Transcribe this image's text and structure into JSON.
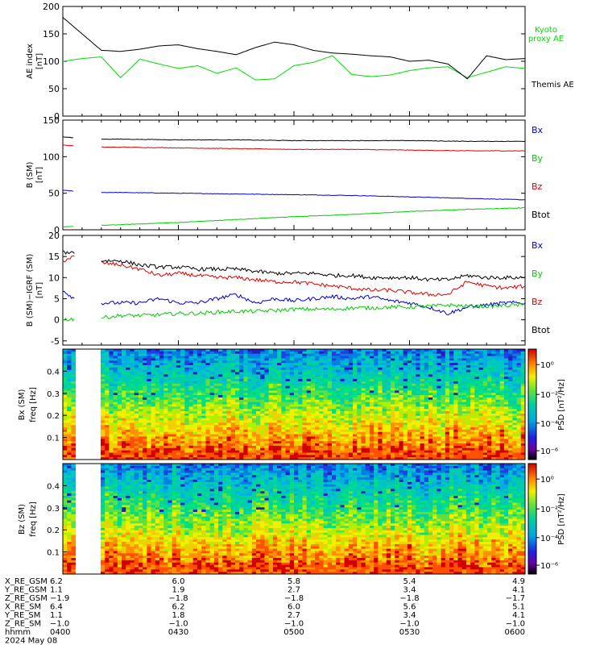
{
  "chart_data": [
    {
      "type": "line",
      "ylabel": "AE index [nT]",
      "ylim": [
        0,
        200
      ],
      "yticks": [
        0,
        50,
        100,
        150,
        200
      ],
      "xlim": [
        "04:00",
        "06:00"
      ],
      "legend_position": "right",
      "series": [
        {
          "name": "Kyoto proxy AE",
          "color": "#00dd00",
          "x": [
            "04:00",
            "04:05",
            "04:10",
            "04:15",
            "04:20",
            "04:25",
            "04:30",
            "04:35",
            "04:40",
            "04:45",
            "04:50",
            "04:55",
            "05:00",
            "05:05",
            "05:10",
            "05:15",
            "05:20",
            "05:25",
            "05:30",
            "05:35",
            "05:40",
            "05:45",
            "05:50",
            "05:55",
            "06:00"
          ],
          "values": [
            100,
            105,
            108,
            70,
            104,
            95,
            87,
            92,
            78,
            88,
            66,
            68,
            92,
            98,
            110,
            76,
            72,
            75,
            83,
            88,
            90,
            70,
            80,
            90,
            87
          ]
        },
        {
          "name": "Themis AE",
          "color": "#000000",
          "x": [
            "04:00",
            "04:05",
            "04:10",
            "04:15",
            "04:20",
            "04:25",
            "04:30",
            "04:35",
            "04:40",
            "04:45",
            "04:50",
            "04:55",
            "05:00",
            "05:05",
            "05:10",
            "05:15",
            "05:20",
            "05:25",
            "05:30",
            "05:35",
            "05:40",
            "05:45",
            "05:50",
            "05:55",
            "06:00"
          ],
          "values": [
            180,
            150,
            120,
            118,
            122,
            128,
            130,
            123,
            118,
            112,
            125,
            135,
            130,
            120,
            115,
            113,
            110,
            108,
            100,
            102,
            95,
            68,
            110,
            103,
            105
          ]
        }
      ]
    },
    {
      "type": "line",
      "ylabel": "B (SM) [nT]",
      "ylim": [
        0,
        150
      ],
      "yticks": [
        0,
        50,
        100,
        150
      ],
      "legend_position": "right",
      "series": [
        {
          "name": "Bx",
          "color": "#0000cc",
          "x": [
            "04:00",
            "04:05",
            "04:10",
            "04:15",
            "04:30",
            "04:45",
            "05:00",
            "05:15",
            "05:30",
            "05:45",
            "06:00"
          ],
          "values": [
            54,
            52,
            51,
            51,
            50,
            49,
            48,
            47,
            45,
            43,
            41
          ]
        },
        {
          "name": "By",
          "color": "#00cc00",
          "x": [
            "04:00",
            "04:05",
            "04:10",
            "04:15",
            "04:30",
            "04:45",
            "05:00",
            "05:15",
            "05:30",
            "05:45",
            "06:00"
          ],
          "values": [
            4,
            5,
            6,
            7,
            10,
            14,
            18,
            21,
            25,
            28,
            30
          ]
        },
        {
          "name": "Bz",
          "color": "#dd0000",
          "x": [
            "04:00",
            "04:05",
            "04:10",
            "04:15",
            "04:30",
            "04:45",
            "05:00",
            "05:15",
            "05:30",
            "05:45",
            "06:00"
          ],
          "values": [
            116,
            114,
            113,
            113,
            112,
            111,
            110,
            110,
            109,
            108,
            108
          ]
        },
        {
          "name": "Btot",
          "color": "#000000",
          "x": [
            "04:00",
            "04:05",
            "04:10",
            "04:15",
            "04:30",
            "04:45",
            "05:00",
            "05:15",
            "05:30",
            "05:45",
            "06:00"
          ],
          "values": [
            127,
            125,
            124,
            124,
            123,
            123,
            122,
            122,
            122,
            121,
            121
          ]
        }
      ]
    },
    {
      "type": "line",
      "ylabel": "B (SM)-IGRF (SM) [nT]",
      "ylim": [
        -6,
        20
      ],
      "yticks": [
        -5,
        0,
        5,
        10,
        15,
        20
      ],
      "legend_position": "right",
      "series": [
        {
          "name": "Bx",
          "color": "#0000cc",
          "x": [
            "04:00",
            "04:03",
            "04:06",
            "04:09",
            "04:10",
            "04:15",
            "04:20",
            "04:25",
            "04:30",
            "04:35",
            "04:40",
            "04:45",
            "04:50",
            "04:55",
            "05:00",
            "05:05",
            "05:10",
            "05:15",
            "05:20",
            "05:25",
            "05:30",
            "05:35",
            "05:40",
            "05:45",
            "05:50",
            "05:55",
            "06:00"
          ],
          "values": [
            7,
            5,
            3,
            4,
            4,
            4,
            4,
            5,
            4,
            4,
            5,
            6,
            4,
            5,
            4.5,
            5,
            5.5,
            5,
            5.5,
            4.5,
            4,
            3,
            1.5,
            3,
            3.5,
            4,
            4
          ]
        },
        {
          "name": "By",
          "color": "#00cc00",
          "x": [
            "04:00",
            "04:03",
            "04:06",
            "04:09",
            "04:10",
            "04:15",
            "04:20",
            "04:25",
            "04:30",
            "04:35",
            "04:40",
            "04:45",
            "04:50",
            "04:55",
            "05:00",
            "05:05",
            "05:10",
            "05:15",
            "05:20",
            "05:25",
            "05:30",
            "05:35",
            "05:40",
            "05:45",
            "05:50",
            "05:55",
            "06:00"
          ],
          "values": [
            0,
            0.2,
            0.5,
            0.5,
            0.5,
            1,
            1,
            1.2,
            1.5,
            1.5,
            1.8,
            2,
            2,
            2.2,
            2.5,
            2.5,
            2.5,
            2.8,
            2.8,
            3,
            3,
            3.2,
            3.5,
            3.2,
            3.2,
            3.4,
            3.5
          ]
        },
        {
          "name": "Bz",
          "color": "#dd0000",
          "x": [
            "04:00",
            "04:03",
            "04:06",
            "04:09",
            "04:10",
            "04:15",
            "04:20",
            "04:25",
            "04:30",
            "04:35",
            "04:40",
            "04:45",
            "04:50",
            "04:55",
            "05:00",
            "05:05",
            "05:10",
            "05:15",
            "05:20",
            "05:25",
            "05:30",
            "05:35",
            "05:40",
            "05:45",
            "05:50",
            "05:55",
            "06:00"
          ],
          "values": [
            14,
            15,
            15,
            14,
            13.5,
            13,
            12,
            10.5,
            11,
            10.5,
            10,
            10,
            9.5,
            9,
            9,
            8.5,
            8,
            7.5,
            7,
            7,
            6.5,
            6,
            6,
            9,
            8,
            7.5,
            8
          ]
        },
        {
          "name": "Btot",
          "color": "#000000",
          "x": [
            "04:00",
            "04:03",
            "04:06",
            "04:09",
            "04:10",
            "04:15",
            "04:20",
            "04:25",
            "04:30",
            "04:35",
            "04:40",
            "04:45",
            "04:50",
            "04:55",
            "05:00",
            "05:05",
            "05:10",
            "05:15",
            "05:20",
            "05:25",
            "05:30",
            "05:35",
            "05:40",
            "05:45",
            "05:50",
            "05:55",
            "06:00"
          ],
          "values": [
            16,
            16,
            15.5,
            15,
            14,
            14,
            13,
            12.5,
            12.5,
            12,
            12,
            12,
            11.5,
            11,
            11,
            11,
            10.5,
            10.5,
            10,
            10,
            10,
            9.5,
            9.5,
            10.5,
            10,
            10,
            10
          ]
        }
      ]
    },
    {
      "type": "heatmap",
      "ylabel": "Bx (SM) freq [Hz]",
      "yticks": [
        0.1,
        0.2,
        0.3,
        0.4
      ],
      "colorbar_label": "PSD [nT²/Hz]",
      "colorbar_ticks": [
        "10⁰",
        "10⁻²",
        "10⁻⁴",
        "10⁻⁶"
      ],
      "data_gap": [
        "04:03",
        "04:10"
      ]
    },
    {
      "type": "heatmap",
      "ylabel": "Bz (SM) freq [Hz]",
      "yticks": [
        0.1,
        0.2,
        0.3,
        0.4
      ],
      "colorbar_label": "PSD [nT²/Hz]",
      "colorbar_ticks": [
        "10⁰",
        "10⁻²",
        "10⁻⁴",
        "10⁻⁶"
      ],
      "data_gap": [
        "04:03",
        "04:10"
      ]
    }
  ],
  "axis": {
    "rows": [
      {
        "label": "X_RE_GSM",
        "values": [
          "6.2",
          "6.0",
          "5.8",
          "5.4",
          "4.9"
        ]
      },
      {
        "label": "Y_RE_GSM",
        "values": [
          "1.1",
          "1.9",
          "2.7",
          "3.4",
          "4.1"
        ]
      },
      {
        "label": "Z_RE_GSM",
        "values": [
          "−1.9",
          "−1.8",
          "−1.8",
          "−1.8",
          "−1.7"
        ]
      },
      {
        "label": "X_RE_SM",
        "values": [
          "6.4",
          "6.2",
          "6.0",
          "5.6",
          "5.1"
        ]
      },
      {
        "label": "Y_RE_SM",
        "values": [
          "1.1",
          "1.8",
          "2.7",
          "3.4",
          "4.1"
        ]
      },
      {
        "label": "Z_RE_SM",
        "values": [
          "−1.0",
          "−1.0",
          "−1.0",
          "−1.0",
          "−1.0"
        ]
      },
      {
        "label": "hhmm",
        "values": [
          "0400",
          "0430",
          "0500",
          "0530",
          "0600"
        ]
      }
    ],
    "date": "2024 May 08"
  },
  "text": {
    "ae_ylabel_1": "AE index",
    "ae_ylabel_2": "[nT]",
    "legend_kyoto_1": "Kyoto",
    "legend_kyoto_2": "proxy AE",
    "legend_themis": "Themis AE",
    "b_ylabel_1": "B (SM)",
    "b_ylabel_2": "[nT]",
    "d_ylabel_1": "B (SM)−IGRF (SM)",
    "d_ylabel_2": "[nT]",
    "bx_ylabel_1": "Bx (SM)",
    "bx_ylabel_2": "freq [Hz]",
    "bz_ylabel_1": "Bz (SM)",
    "bz_ylabel_2": "freq [Hz]",
    "cb_label": "PSD [nT²/Hz]"
  },
  "colors": {
    "kyoto": "#00dd00",
    "themis": "#000000",
    "bx": "#0000cc",
    "by": "#00cc00",
    "bz": "#dd0000",
    "btot": "#000000"
  }
}
